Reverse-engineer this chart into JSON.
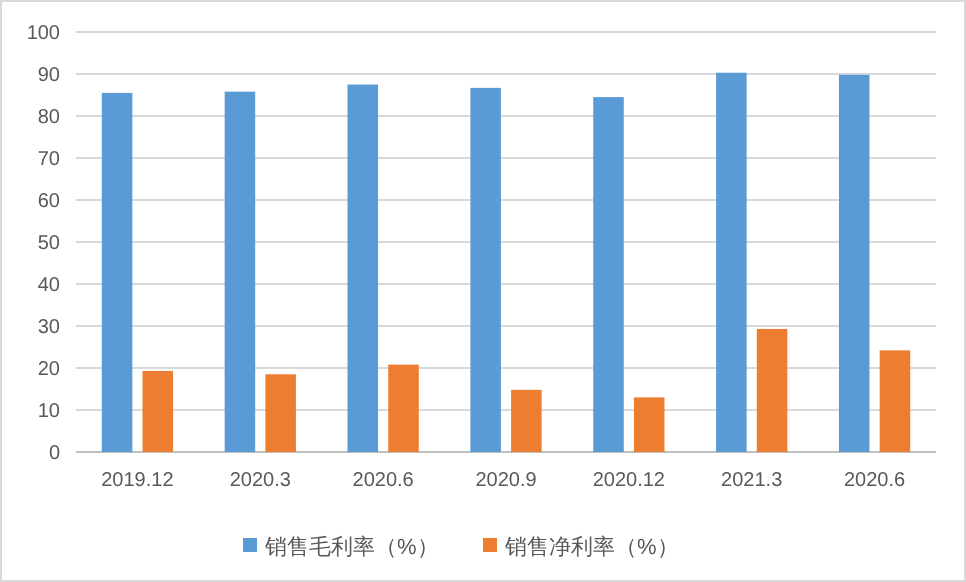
{
  "chart_data": {
    "type": "bar",
    "categories": [
      "2019.12",
      "2020.3",
      "2020.6",
      "2020.9",
      "2020.12",
      "2021.3",
      "2020.6"
    ],
    "series": [
      {
        "name": "销售毛利率（%）",
        "color": "#5b9bd5",
        "values": [
          85.5,
          85.8,
          87.5,
          86.7,
          84.5,
          90.3,
          89.8
        ]
      },
      {
        "name": "销售净利率（%）",
        "color": "#ed7d31",
        "values": [
          19.3,
          18.5,
          20.8,
          14.8,
          13.0,
          29.3,
          24.2
        ]
      }
    ],
    "ylim": [
      0,
      100
    ],
    "yticks": [
      0,
      10,
      20,
      30,
      40,
      50,
      60,
      70,
      80,
      90,
      100
    ],
    "grid": "y",
    "legend": "bottom"
  }
}
